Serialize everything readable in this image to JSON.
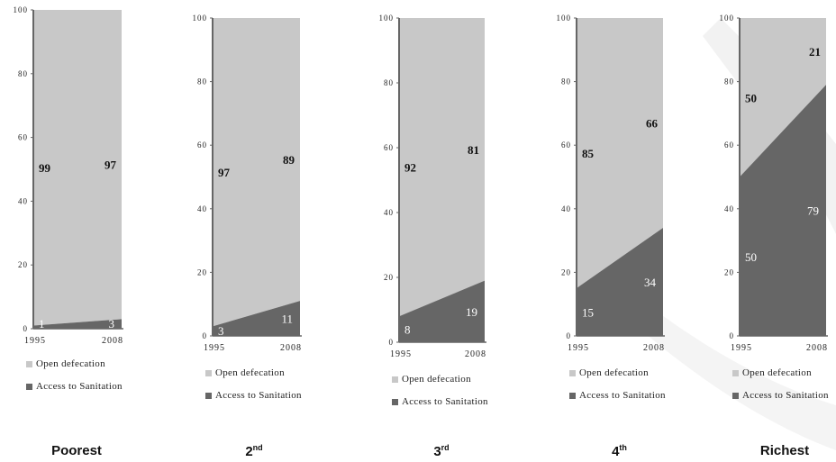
{
  "chart_data": [
    {
      "type": "area",
      "title": "Poorest",
      "title_sup": "",
      "x": [
        "1995",
        "2008"
      ],
      "ylim": [
        0,
        100
      ],
      "yticks": [
        "0",
        "20",
        "40",
        "60",
        "80",
        "100"
      ],
      "series": [
        {
          "name": "Open defecation",
          "values": [
            99,
            97
          ],
          "labels": [
            "99",
            "97"
          ],
          "color": "#c8c8c8"
        },
        {
          "name": "Access to Sanitation",
          "values": [
            1,
            3
          ],
          "labels": [
            "1",
            "3"
          ],
          "color": "#666666"
        }
      ]
    },
    {
      "type": "area",
      "title": "2",
      "title_sup": "nd",
      "x": [
        "1995",
        "2008"
      ],
      "ylim": [
        0,
        100
      ],
      "yticks": [
        "0",
        "20",
        "40",
        "60",
        "80",
        "100"
      ],
      "series": [
        {
          "name": "Open defecation",
          "values": [
            97,
            89
          ],
          "labels": [
            "97",
            "89"
          ],
          "color": "#c8c8c8"
        },
        {
          "name": "Access to Sanitation",
          "values": [
            3,
            11
          ],
          "labels": [
            "3",
            "11"
          ],
          "color": "#666666"
        }
      ]
    },
    {
      "type": "area",
      "title": "3",
      "title_sup": "rd",
      "x": [
        "1995",
        "2008"
      ],
      "ylim": [
        0,
        100
      ],
      "yticks": [
        "0",
        "20",
        "40",
        "60",
        "80",
        "100"
      ],
      "series": [
        {
          "name": "Open defecation",
          "values": [
            92,
            81
          ],
          "labels": [
            "92",
            "81"
          ],
          "color": "#c8c8c8"
        },
        {
          "name": "Access to Sanitation",
          "values": [
            8,
            19
          ],
          "labels": [
            "8",
            "19"
          ],
          "color": "#666666"
        }
      ]
    },
    {
      "type": "area",
      "title": "4",
      "title_sup": "th",
      "x": [
        "1995",
        "2008"
      ],
      "ylim": [
        0,
        100
      ],
      "yticks": [
        "0",
        "20",
        "40",
        "60",
        "80",
        "100"
      ],
      "series": [
        {
          "name": "Open defecation",
          "values": [
            85,
            66
          ],
          "labels": [
            "85",
            "66"
          ],
          "color": "#c8c8c8"
        },
        {
          "name": "Access to Sanitation",
          "values": [
            15,
            34
          ],
          "labels": [
            "15",
            "34"
          ],
          "color": "#666666"
        }
      ]
    },
    {
      "type": "area",
      "title": "Richest",
      "title_sup": "",
      "x": [
        "1995",
        "2008"
      ],
      "ylim": [
        0,
        100
      ],
      "yticks": [
        "0",
        "20",
        "40",
        "60",
        "80",
        "100"
      ],
      "series": [
        {
          "name": "Open defecation",
          "values": [
            50,
            21
          ],
          "labels": [
            "50",
            "21"
          ],
          "color": "#c8c8c8"
        },
        {
          "name": "Access to Sanitation",
          "values": [
            50,
            79
          ],
          "labels": [
            "50",
            "79"
          ],
          "color": "#666666"
        }
      ]
    }
  ]
}
